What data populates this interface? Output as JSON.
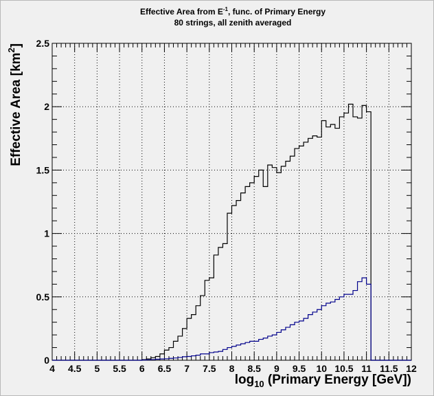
{
  "chart_data": {
    "type": "step",
    "title_lines": [
      "Effective Area from E^-1, func. of Primary Energy",
      "80 strings, all zenith averaged"
    ],
    "title_prefix": "Effective Area from E",
    "title_superscript": "-1",
    "title_suffix": ", func. of Primary Energy",
    "subtitle": "80 strings, all zenith averaged",
    "ylabel_text": "Effective Area [km",
    "ylabel_sup": "2",
    "ylabel_close": "]",
    "xlabel_prefix": "log",
    "xlabel_sub": "10",
    "xlabel_suffix": " (Primary Energy [GeV])",
    "xlim": [
      4,
      12
    ],
    "ylim": [
      0,
      2.5
    ],
    "x_ticks": [
      "4",
      "4.5",
      "5",
      "5.5",
      "6",
      "6.5",
      "7",
      "7.5",
      "8",
      "8.5",
      "9",
      "9.5",
      "10",
      "10.5",
      "11",
      "11.5",
      "12"
    ],
    "y_ticks": [
      "0",
      "0.5",
      "1",
      "1.5",
      "2",
      "2.5"
    ],
    "grid": true,
    "bin_width": 0.1,
    "series": [
      {
        "color": "#000000",
        "bin_start": 4.0,
        "values": [
          0,
          0,
          0,
          0,
          0,
          0,
          0,
          0,
          0,
          0,
          0,
          0,
          0,
          0,
          0,
          0,
          0,
          0,
          0,
          0,
          0.005,
          0.01,
          0.02,
          0.03,
          0.05,
          0.08,
          0.1,
          0.15,
          0.19,
          0.25,
          0.33,
          0.36,
          0.43,
          0.51,
          0.63,
          0.65,
          0.83,
          0.89,
          0.92,
          1.16,
          1.22,
          1.26,
          1.32,
          1.37,
          1.4,
          1.45,
          1.5,
          1.37,
          1.54,
          1.52,
          1.48,
          1.53,
          1.57,
          1.61,
          1.67,
          1.69,
          1.72,
          1.75,
          1.77,
          1.76,
          1.89,
          1.84,
          1.86,
          1.83,
          1.92,
          1.95,
          2.02,
          1.92,
          1.91,
          2.01,
          1.96
        ]
      },
      {
        "color": "#00008b",
        "bin_start": 4.0,
        "values": [
          0,
          0,
          0,
          0,
          0,
          0,
          0,
          0,
          0,
          0,
          0,
          0,
          0,
          0,
          0,
          0,
          0,
          0,
          0,
          0,
          0.002,
          0.003,
          0.005,
          0.008,
          0.01,
          0.012,
          0.015,
          0.018,
          0.022,
          0.028,
          0.03,
          0.035,
          0.04,
          0.05,
          0.05,
          0.06,
          0.065,
          0.07,
          0.085,
          0.1,
          0.11,
          0.12,
          0.13,
          0.14,
          0.15,
          0.15,
          0.165,
          0.175,
          0.19,
          0.2,
          0.22,
          0.24,
          0.26,
          0.28,
          0.3,
          0.31,
          0.33,
          0.36,
          0.38,
          0.4,
          0.43,
          0.45,
          0.46,
          0.48,
          0.5,
          0.52,
          0.52,
          0.55,
          0.62,
          0.65,
          0.6
        ]
      }
    ]
  }
}
